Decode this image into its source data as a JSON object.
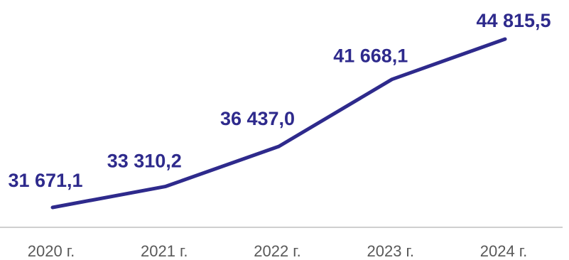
{
  "chart_data": {
    "type": "line",
    "categories": [
      "2020 г.",
      "2021 г.",
      "2022 г.",
      "2023 г.",
      "2024 г."
    ],
    "series": [
      {
        "values": [
          31671.1,
          33310.2,
          36437.0,
          41668.1,
          44815.5
        ],
        "labels": [
          "31 671,1",
          "33 310,2",
          "36 437,0",
          "41 668,1",
          "44 815,5"
        ]
      }
    ],
    "title": "",
    "xlabel": "",
    "ylabel": "",
    "grid": false,
    "legend": "none"
  },
  "colors": {
    "line": "#2e2a8c",
    "label": "#2e2a8c",
    "axis": "#bfbfbf",
    "tick_text": "#595959"
  }
}
